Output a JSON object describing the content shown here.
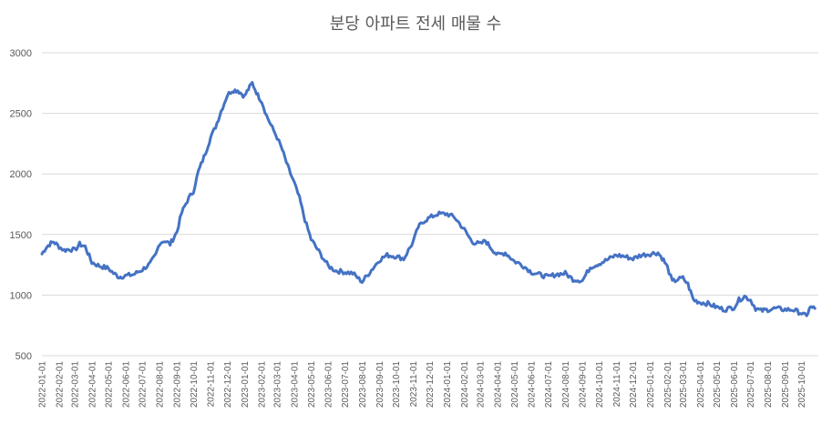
{
  "chart_data": {
    "type": "line",
    "title": "분당 아파트 전세 매물 수",
    "xlabel": "",
    "ylabel": "",
    "ylim": [
      500,
      3000
    ],
    "yticks": [
      500,
      1000,
      1500,
      2000,
      2500,
      3000
    ],
    "grid": true,
    "legend": "none",
    "x_ticks": [
      "2022-01-01",
      "2022-02-01",
      "2022-03-01",
      "2022-04-01",
      "2022-05-01",
      "2022-06-01",
      "2022-07-01",
      "2022-08-01",
      "2022-09-01",
      "2022-10-01",
      "2022-11-01",
      "2022-12-01",
      "2023-01-01",
      "2023-02-01",
      "2023-03-01",
      "2023-04-01",
      "2023-05-01",
      "2023-06-01",
      "2023-07-01",
      "2023-08-01",
      "2023-09-01",
      "2023-10-01",
      "2023-11-01",
      "2023-12-01",
      "2024-01-01",
      "2024-02-01",
      "2024-03-01",
      "2024-04-01",
      "2024-05-01",
      "2024-06-01",
      "2024-07-01",
      "2024-08-01",
      "2024-09-01",
      "2024-10-01",
      "2024-11-01",
      "2024-12-01",
      "2025-01-01",
      "2025-02-01",
      "2025-03-01",
      "2025-04-01",
      "2025-05-01",
      "2025-06-01",
      "2025-07-01",
      "2025-08-01",
      "2025-09-01",
      "2025-10-01"
    ],
    "series": [
      {
        "name": "",
        "color": "#4472c4",
        "points": [
          [
            "2022-01-01",
            1340
          ],
          [
            "2022-01-08",
            1390
          ],
          [
            "2022-01-15",
            1420
          ],
          [
            "2022-01-22",
            1440
          ],
          [
            "2022-02-01",
            1400
          ],
          [
            "2022-02-10",
            1370
          ],
          [
            "2022-02-20",
            1380
          ],
          [
            "2022-03-01",
            1370
          ],
          [
            "2022-03-10",
            1420
          ],
          [
            "2022-03-20",
            1400
          ],
          [
            "2022-04-01",
            1270
          ],
          [
            "2022-04-15",
            1240
          ],
          [
            "2022-05-01",
            1220
          ],
          [
            "2022-05-10",
            1180
          ],
          [
            "2022-05-20",
            1150
          ],
          [
            "2022-06-01",
            1160
          ],
          [
            "2022-06-15",
            1170
          ],
          [
            "2022-07-01",
            1210
          ],
          [
            "2022-07-15",
            1260
          ],
          [
            "2022-07-25",
            1330
          ],
          [
            "2022-08-01",
            1430
          ],
          [
            "2022-08-10",
            1450
          ],
          [
            "2022-08-20",
            1420
          ],
          [
            "2022-09-01",
            1520
          ],
          [
            "2022-09-10",
            1680
          ],
          [
            "2022-09-20",
            1780
          ],
          [
            "2022-10-01",
            1860
          ],
          [
            "2022-10-10",
            2020
          ],
          [
            "2022-10-20",
            2140
          ],
          [
            "2022-11-01",
            2300
          ],
          [
            "2022-11-10",
            2390
          ],
          [
            "2022-11-20",
            2520
          ],
          [
            "2022-12-01",
            2650
          ],
          [
            "2022-12-10",
            2690
          ],
          [
            "2022-12-20",
            2690
          ],
          [
            "2023-01-01",
            2640
          ],
          [
            "2023-01-08",
            2700
          ],
          [
            "2023-01-15",
            2750
          ],
          [
            "2023-01-25",
            2650
          ],
          [
            "2023-02-01",
            2600
          ],
          [
            "2023-02-10",
            2480
          ],
          [
            "2023-02-20",
            2380
          ],
          [
            "2023-03-01",
            2300
          ],
          [
            "2023-03-10",
            2200
          ],
          [
            "2023-03-20",
            2060
          ],
          [
            "2023-04-01",
            1920
          ],
          [
            "2023-04-10",
            1800
          ],
          [
            "2023-04-20",
            1620
          ],
          [
            "2023-05-01",
            1460
          ],
          [
            "2023-05-15",
            1360
          ],
          [
            "2023-06-01",
            1240
          ],
          [
            "2023-06-15",
            1200
          ],
          [
            "2023-07-01",
            1190
          ],
          [
            "2023-07-15",
            1180
          ],
          [
            "2023-08-01",
            1110
          ],
          [
            "2023-08-15",
            1190
          ],
          [
            "2023-09-01",
            1290
          ],
          [
            "2023-09-15",
            1330
          ],
          [
            "2023-10-01",
            1320
          ],
          [
            "2023-10-15",
            1300
          ],
          [
            "2023-11-01",
            1440
          ],
          [
            "2023-11-10",
            1560
          ],
          [
            "2023-11-20",
            1610
          ],
          [
            "2023-12-01",
            1640
          ],
          [
            "2023-12-15",
            1670
          ],
          [
            "2024-01-01",
            1670
          ],
          [
            "2024-01-15",
            1640
          ],
          [
            "2024-02-01",
            1540
          ],
          [
            "2024-02-15",
            1440
          ],
          [
            "2024-03-01",
            1420
          ],
          [
            "2024-03-10",
            1450
          ],
          [
            "2024-03-20",
            1390
          ],
          [
            "2024-04-01",
            1330
          ],
          [
            "2024-04-15",
            1350
          ],
          [
            "2024-05-01",
            1280
          ],
          [
            "2024-05-15",
            1250
          ],
          [
            "2024-06-01",
            1190
          ],
          [
            "2024-06-15",
            1170
          ],
          [
            "2024-07-01",
            1150
          ],
          [
            "2024-07-15",
            1170
          ],
          [
            "2024-08-01",
            1180
          ],
          [
            "2024-08-15",
            1130
          ],
          [
            "2024-09-01",
            1120
          ],
          [
            "2024-09-15",
            1230
          ],
          [
            "2024-10-01",
            1260
          ],
          [
            "2024-10-15",
            1290
          ],
          [
            "2024-11-01",
            1330
          ],
          [
            "2024-11-15",
            1320
          ],
          [
            "2024-12-01",
            1300
          ],
          [
            "2024-12-15",
            1330
          ],
          [
            "2025-01-01",
            1340
          ],
          [
            "2025-01-15",
            1350
          ],
          [
            "2025-01-25",
            1290
          ],
          [
            "2025-02-01",
            1230
          ],
          [
            "2025-02-10",
            1110
          ],
          [
            "2025-02-20",
            1130
          ],
          [
            "2025-03-01",
            1140
          ],
          [
            "2025-03-10",
            1090
          ],
          [
            "2025-03-20",
            960
          ],
          [
            "2025-04-01",
            940
          ],
          [
            "2025-04-15",
            930
          ],
          [
            "2025-05-01",
            900
          ],
          [
            "2025-05-15",
            880
          ],
          [
            "2025-06-01",
            900
          ],
          [
            "2025-06-10",
            960
          ],
          [
            "2025-06-20",
            990
          ],
          [
            "2025-07-01",
            960
          ],
          [
            "2025-07-10",
            890
          ],
          [
            "2025-07-20",
            870
          ],
          [
            "2025-08-01",
            880
          ],
          [
            "2025-08-15",
            890
          ],
          [
            "2025-09-01",
            880
          ],
          [
            "2025-09-15",
            880
          ],
          [
            "2025-10-01",
            850
          ],
          [
            "2025-10-10",
            820
          ],
          [
            "2025-10-15",
            900
          ],
          [
            "2025-10-25",
            890
          ]
        ]
      }
    ]
  }
}
